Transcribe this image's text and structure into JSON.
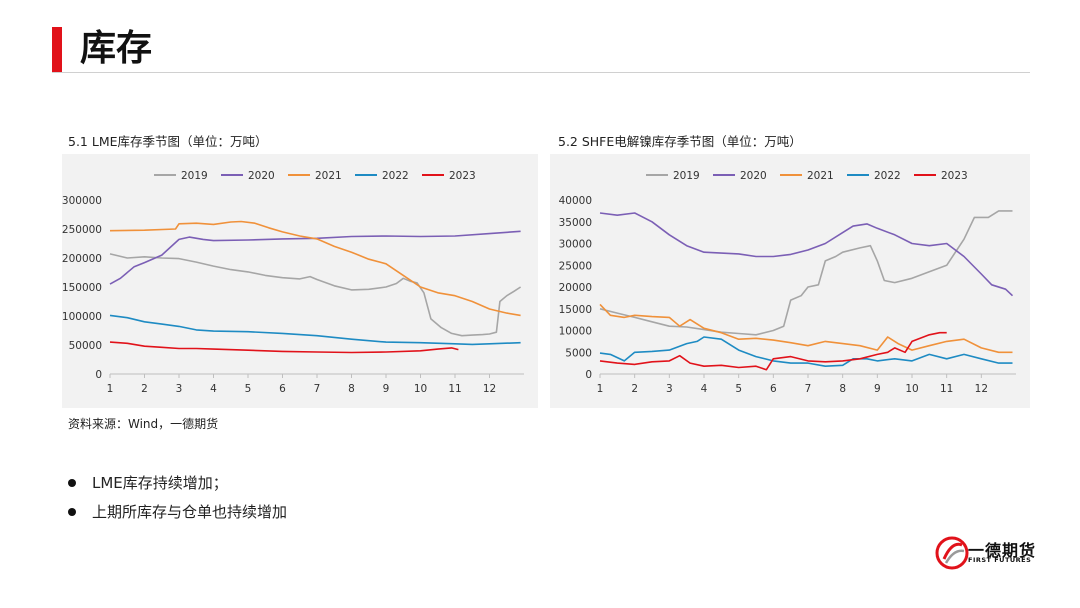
{
  "page": {
    "title": "库存"
  },
  "source_note": "资料来源：Wind，一德期货",
  "bullets": [
    "LME库存持续增加；",
    "上期所库存与仓单也持续增加"
  ],
  "logo": {
    "name": "一德期货",
    "sub": "FIRST FUTURES",
    "colors": [
      "#e1121a",
      "#9a9a9a"
    ]
  },
  "colors": {
    "accent": "#e1121a",
    "s2019": "#a6a6a6",
    "s2020": "#7b5fb5",
    "s2021": "#f0913a",
    "s2022": "#1e8bc3",
    "s2023": "#e1121a"
  },
  "chart_data": [
    {
      "type": "line",
      "caption": "5.1 LME库存季节图（单位：万吨）",
      "x_ticks": [
        "1",
        "2",
        "3",
        "4",
        "5",
        "6",
        "7",
        "8",
        "9",
        "10",
        "11",
        "12"
      ],
      "ylim": [
        0,
        300000
      ],
      "y_ticks": [
        0,
        50000,
        100000,
        150000,
        200000,
        250000,
        300000
      ],
      "legend_position": "top",
      "series": [
        {
          "name": "2019",
          "color": "#a6a6a6",
          "points": [
            [
              1,
              207000
            ],
            [
              1.5,
              200000
            ],
            [
              2,
              202000
            ],
            [
              2.5,
              200000
            ],
            [
              3,
              199000
            ],
            [
              3.5,
              193000
            ],
            [
              4,
              186000
            ],
            [
              4.5,
              180000
            ],
            [
              5,
              176000
            ],
            [
              5.5,
              170000
            ],
            [
              6,
              166000
            ],
            [
              6.5,
              164000
            ],
            [
              6.8,
              168000
            ],
            [
              7,
              163000
            ],
            [
              7.5,
              152000
            ],
            [
              8,
              145000
            ],
            [
              8.5,
              146000
            ],
            [
              9,
              150000
            ],
            [
              9.3,
              156000
            ],
            [
              9.5,
              165000
            ],
            [
              9.7,
              160000
            ],
            [
              9.9,
              157000
            ],
            [
              10.1,
              140000
            ],
            [
              10.3,
              95000
            ],
            [
              10.6,
              80000
            ],
            [
              10.9,
              70000
            ],
            [
              11.2,
              66000
            ],
            [
              11.5,
              67000
            ],
            [
              11.8,
              68000
            ],
            [
              12,
              69000
            ],
            [
              12.2,
              72000
            ],
            [
              12.3,
              125000
            ],
            [
              12.5,
              135000
            ],
            [
              12.7,
              142000
            ],
            [
              12.9,
              150000
            ]
          ]
        },
        {
          "name": "2020",
          "color": "#7b5fb5",
          "points": [
            [
              1,
              155000
            ],
            [
              1.3,
              165000
            ],
            [
              1.7,
              185000
            ],
            [
              2,
              192000
            ],
            [
              2.5,
              205000
            ],
            [
              3,
              232000
            ],
            [
              3.3,
              236000
            ],
            [
              3.7,
              232000
            ],
            [
              4,
              230000
            ],
            [
              5,
              231000
            ],
            [
              6,
              233000
            ],
            [
              7,
              234000
            ],
            [
              8,
              237000
            ],
            [
              9,
              238000
            ],
            [
              10,
              237000
            ],
            [
              11,
              238000
            ],
            [
              12,
              242000
            ],
            [
              12.9,
              246000
            ]
          ]
        },
        {
          "name": "2021",
          "color": "#f0913a",
          "points": [
            [
              1,
              247000
            ],
            [
              2,
              248000
            ],
            [
              2.9,
              250000
            ],
            [
              3,
              259000
            ],
            [
              3.5,
              260000
            ],
            [
              4,
              258000
            ],
            [
              4.5,
              262000
            ],
            [
              4.8,
              263000
            ],
            [
              5.2,
              260000
            ],
            [
              5.6,
              252000
            ],
            [
              6,
              245000
            ],
            [
              6.5,
              238000
            ],
            [
              7,
              233000
            ],
            [
              7.5,
              220000
            ],
            [
              8,
              210000
            ],
            [
              8.5,
              198000
            ],
            [
              9,
              190000
            ],
            [
              9.5,
              170000
            ],
            [
              10,
              150000
            ],
            [
              10.5,
              140000
            ],
            [
              11,
              135000
            ],
            [
              11.5,
              125000
            ],
            [
              12,
              112000
            ],
            [
              12.5,
              105000
            ],
            [
              12.9,
              101000
            ]
          ]
        },
        {
          "name": "2022",
          "color": "#1e8bc3",
          "points": [
            [
              1,
              101000
            ],
            [
              1.5,
              97000
            ],
            [
              2,
              90000
            ],
            [
              2.5,
              86000
            ],
            [
              3,
              82000
            ],
            [
              3.5,
              76000
            ],
            [
              4,
              74000
            ],
            [
              5,
              73000
            ],
            [
              6,
              70000
            ],
            [
              7,
              66000
            ],
            [
              8,
              60000
            ],
            [
              9,
              55000
            ],
            [
              10,
              54000
            ],
            [
              11,
              52000
            ],
            [
              11.5,
              51000
            ],
            [
              12,
              52000
            ],
            [
              12.9,
              54000
            ]
          ]
        },
        {
          "name": "2023",
          "color": "#e1121a",
          "points": [
            [
              1,
              55000
            ],
            [
              1.5,
              53000
            ],
            [
              2,
              48000
            ],
            [
              2.5,
              46000
            ],
            [
              3,
              44000
            ],
            [
              3.5,
              44000
            ],
            [
              4,
              43000
            ],
            [
              5,
              41000
            ],
            [
              6,
              39000
            ],
            [
              7,
              38000
            ],
            [
              8,
              37000
            ],
            [
              9,
              38000
            ],
            [
              10,
              40000
            ],
            [
              10.5,
              43000
            ],
            [
              10.9,
              45000
            ],
            [
              11.1,
              42000
            ]
          ]
        }
      ]
    },
    {
      "type": "line",
      "caption": "5.2 SHFE电解镍库存季节图（单位：万吨）",
      "x_ticks": [
        "1",
        "2",
        "3",
        "4",
        "5",
        "6",
        "7",
        "8",
        "9",
        "10",
        "11",
        "12"
      ],
      "ylim": [
        0,
        40000
      ],
      "y_ticks": [
        0,
        5000,
        10000,
        15000,
        20000,
        25000,
        30000,
        35000,
        40000
      ],
      "legend_position": "top",
      "series": [
        {
          "name": "2019",
          "color": "#a6a6a6",
          "points": [
            [
              1,
              15000
            ],
            [
              1.5,
              14000
            ],
            [
              2,
              13000
            ],
            [
              2.5,
              12000
            ],
            [
              3,
              11000
            ],
            [
              3.5,
              10800
            ],
            [
              4,
              10200
            ],
            [
              4.5,
              9600
            ],
            [
              5,
              9300
            ],
            [
              5.5,
              9000
            ],
            [
              6,
              10000
            ],
            [
              6.3,
              11000
            ],
            [
              6.5,
              17000
            ],
            [
              6.8,
              18000
            ],
            [
              7,
              20000
            ],
            [
              7.3,
              20500
            ],
            [
              7.5,
              26000
            ],
            [
              7.8,
              27000
            ],
            [
              8,
              28000
            ],
            [
              8.5,
              29000
            ],
            [
              8.8,
              29500
            ],
            [
              9,
              26000
            ],
            [
              9.2,
              21500
            ],
            [
              9.5,
              21000
            ],
            [
              10,
              22000
            ],
            [
              10.5,
              23500
            ],
            [
              11,
              25000
            ],
            [
              11.5,
              31000
            ],
            [
              11.8,
              36000
            ],
            [
              12.2,
              36000
            ],
            [
              12.5,
              37500
            ],
            [
              12.9,
              37500
            ]
          ]
        },
        {
          "name": "2020",
          "color": "#7b5fb5",
          "points": [
            [
              1,
              37000
            ],
            [
              1.5,
              36500
            ],
            [
              2,
              37000
            ],
            [
              2.5,
              35000
            ],
            [
              3,
              32000
            ],
            [
              3.5,
              29500
            ],
            [
              4,
              28000
            ],
            [
              4.5,
              27800
            ],
            [
              5,
              27600
            ],
            [
              5.5,
              27000
            ],
            [
              6,
              27000
            ],
            [
              6.5,
              27500
            ],
            [
              7,
              28500
            ],
            [
              7.5,
              30000
            ],
            [
              8,
              32500
            ],
            [
              8.3,
              34000
            ],
            [
              8.7,
              34500
            ],
            [
              9,
              33500
            ],
            [
              9.5,
              32000
            ],
            [
              10,
              30000
            ],
            [
              10.5,
              29500
            ],
            [
              11,
              30000
            ],
            [
              11.5,
              27000
            ],
            [
              12,
              23000
            ],
            [
              12.3,
              20500
            ],
            [
              12.7,
              19500
            ],
            [
              12.9,
              18000
            ]
          ]
        },
        {
          "name": "2021",
          "color": "#f0913a",
          "points": [
            [
              1,
              16000
            ],
            [
              1.3,
              13500
            ],
            [
              1.7,
              13000
            ],
            [
              2,
              13500
            ],
            [
              2.5,
              13200
            ],
            [
              3,
              13000
            ],
            [
              3.3,
              11000
            ],
            [
              3.6,
              12500
            ],
            [
              4,
              10500
            ],
            [
              4.5,
              9500
            ],
            [
              5,
              8000
            ],
            [
              5.5,
              8200
            ],
            [
              6,
              7800
            ],
            [
              6.5,
              7200
            ],
            [
              7,
              6500
            ],
            [
              7.5,
              7500
            ],
            [
              8,
              7000
            ],
            [
              8.5,
              6500
            ],
            [
              9,
              5500
            ],
            [
              9.3,
              8500
            ],
            [
              9.6,
              7000
            ],
            [
              10,
              5500
            ],
            [
              10.5,
              6500
            ],
            [
              11,
              7500
            ],
            [
              11.5,
              8000
            ],
            [
              12,
              6000
            ],
            [
              12.5,
              5000
            ],
            [
              12.9,
              5000
            ]
          ]
        },
        {
          "name": "2022",
          "color": "#1e8bc3",
          "points": [
            [
              1,
              4800
            ],
            [
              1.3,
              4500
            ],
            [
              1.7,
              3000
            ],
            [
              2,
              5000
            ],
            [
              2.5,
              5200
            ],
            [
              3,
              5500
            ],
            [
              3.5,
              7000
            ],
            [
              3.8,
              7500
            ],
            [
              4,
              8500
            ],
            [
              4.5,
              8000
            ],
            [
              5,
              5500
            ],
            [
              5.5,
              4000
            ],
            [
              6,
              3000
            ],
            [
              6.5,
              2500
            ],
            [
              7,
              2500
            ],
            [
              7.5,
              1800
            ],
            [
              8,
              2000
            ],
            [
              8.3,
              3500
            ],
            [
              8.7,
              3500
            ],
            [
              9,
              3000
            ],
            [
              9.5,
              3500
            ],
            [
              10,
              3000
            ],
            [
              10.5,
              4500
            ],
            [
              11,
              3500
            ],
            [
              11.5,
              4500
            ],
            [
              12,
              3500
            ],
            [
              12.5,
              2500
            ],
            [
              12.9,
              2500
            ]
          ]
        },
        {
          "name": "2023",
          "color": "#e1121a",
          "points": [
            [
              1,
              3000
            ],
            [
              1.5,
              2500
            ],
            [
              2,
              2200
            ],
            [
              2.5,
              2800
            ],
            [
              3,
              3000
            ],
            [
              3.3,
              4200
            ],
            [
              3.6,
              2500
            ],
            [
              4,
              1800
            ],
            [
              4.5,
              2000
            ],
            [
              5,
              1500
            ],
            [
              5.5,
              1800
            ],
            [
              5.8,
              1000
            ],
            [
              6,
              3500
            ],
            [
              6.5,
              4000
            ],
            [
              7,
              3000
            ],
            [
              7.5,
              2800
            ],
            [
              8,
              3000
            ],
            [
              8.5,
              3500
            ],
            [
              9,
              4500
            ],
            [
              9.3,
              5000
            ],
            [
              9.5,
              6000
            ],
            [
              9.8,
              5000
            ],
            [
              10,
              7500
            ],
            [
              10.5,
              9000
            ],
            [
              10.8,
              9500
            ],
            [
              11,
              9500
            ]
          ]
        }
      ]
    }
  ]
}
